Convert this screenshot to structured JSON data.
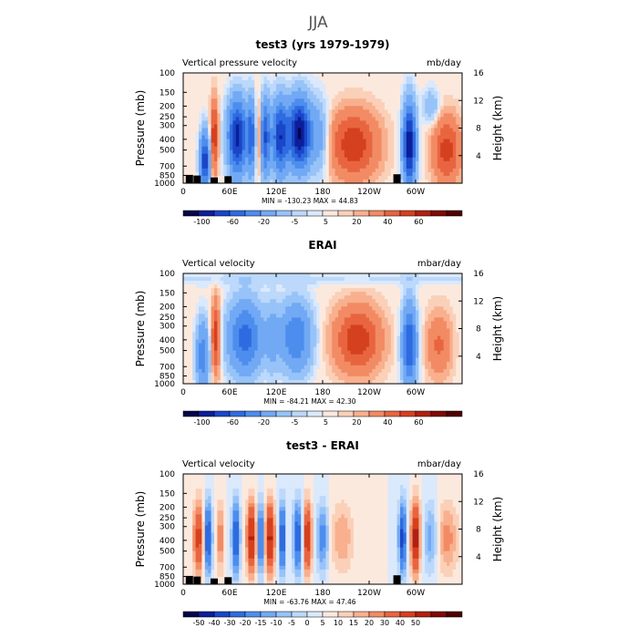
{
  "figure_title": "JJA",
  "colormap": [
    "#05054b",
    "#0c1e9a",
    "#1a46c8",
    "#2f6be0",
    "#4d8ded",
    "#72a9f4",
    "#97c3f8",
    "#bcd8fa",
    "#dbe9fc",
    "#fce9de",
    "#fbd0b8",
    "#f8b08e",
    "#f28b64",
    "#e86540",
    "#d5401f",
    "#b02010",
    "#800a05",
    "#500000"
  ],
  "chart_data": [
    {
      "type": "heatmap",
      "id": "test3",
      "title": "test3 (yrs 1979-1979)",
      "left_label": "Vertical pressure velocity",
      "right_label": "mb/day",
      "ylabel": "Pressure (mb)",
      "y2label": "Height (km)",
      "xticks": [
        "0",
        "60E",
        "120E",
        "180",
        "120W",
        "60W"
      ],
      "xtick_values": [
        0,
        60,
        120,
        180,
        240,
        300
      ],
      "xlim": [
        0,
        360
      ],
      "yticks": [
        "100",
        "150",
        "200",
        "250",
        "300",
        "400",
        "500",
        "700",
        "850",
        "1000"
      ],
      "ytick_values": [
        100,
        150,
        200,
        250,
        300,
        400,
        500,
        700,
        850,
        1000
      ],
      "ylim": [
        1000,
        100
      ],
      "y2ticks": [
        "16",
        "12",
        "8",
        "4"
      ],
      "y2tick_values": [
        16,
        12,
        8,
        4
      ],
      "stats": "MIN = -130.23   MAX =  44.83",
      "min": -130.23,
      "max": 44.83,
      "colorbar_labels": [
        "-100",
        "-60",
        "-20",
        "-5",
        "5",
        "20",
        "40",
        "60"
      ],
      "colorbar_levels": [
        -120,
        -100,
        -80,
        -60,
        -40,
        -20,
        -10,
        -5,
        -2,
        2,
        5,
        10,
        20,
        30,
        40,
        50,
        60
      ],
      "topography": [
        [
          8,
          26
        ],
        [
          18,
          24
        ],
        [
          40,
          18
        ],
        [
          58,
          22
        ],
        [
          112,
          10
        ],
        [
          134,
          8
        ],
        [
          160,
          2
        ],
        [
          200,
          2
        ],
        [
          240,
          2
        ],
        [
          276,
          28
        ],
        [
          293,
          8
        ],
        [
          336,
          3
        ]
      ]
    },
    {
      "type": "heatmap",
      "id": "erai",
      "title": "ERAI",
      "left_label": "Vertical velocity",
      "right_label": "mbar/day",
      "ylabel": "Pressure (mb)",
      "y2label": "Height (km)",
      "xticks": [
        "0",
        "60E",
        "120E",
        "180",
        "120W",
        "60W"
      ],
      "xtick_values": [
        0,
        60,
        120,
        180,
        240,
        300
      ],
      "xlim": [
        0,
        360
      ],
      "yticks": [
        "100",
        "150",
        "200",
        "250",
        "300",
        "400",
        "500",
        "700",
        "850",
        "1000"
      ],
      "ytick_values": [
        100,
        150,
        200,
        250,
        300,
        400,
        500,
        700,
        850,
        1000
      ],
      "ylim": [
        1000,
        100
      ],
      "y2ticks": [
        "16",
        "12",
        "8",
        "4"
      ],
      "y2tick_values": [
        16,
        12,
        8,
        4
      ],
      "stats": "MIN = -84.21   MAX =  42.30",
      "min": -84.21,
      "max": 42.3,
      "colorbar_labels": [
        "-100",
        "-60",
        "-20",
        "-5",
        "5",
        "20",
        "40",
        "60"
      ],
      "colorbar_levels": [
        -120,
        -100,
        -80,
        -60,
        -40,
        -20,
        -10,
        -5,
        -2,
        2,
        5,
        10,
        20,
        30,
        40,
        50,
        60
      ],
      "topography": [
        [
          8,
          26
        ],
        [
          18,
          24
        ],
        [
          40,
          18
        ],
        [
          58,
          22
        ],
        [
          112,
          10
        ],
        [
          134,
          8
        ],
        [
          160,
          2
        ],
        [
          200,
          2
        ],
        [
          240,
          2
        ],
        [
          276,
          28
        ],
        [
          293,
          8
        ],
        [
          336,
          3
        ]
      ]
    },
    {
      "type": "heatmap",
      "id": "diff",
      "title": "test3 - ERAI",
      "left_label": "Vertical velocity",
      "right_label": "mbar/day",
      "ylabel": "Pressure (mb)",
      "y2label": "Height (km)",
      "xticks": [
        "0",
        "60E",
        "120E",
        "180",
        "120W",
        "60W"
      ],
      "xtick_values": [
        0,
        60,
        120,
        180,
        240,
        300
      ],
      "xlim": [
        0,
        360
      ],
      "yticks": [
        "100",
        "150",
        "200",
        "250",
        "300",
        "400",
        "500",
        "700",
        "850",
        "1000"
      ],
      "ytick_values": [
        100,
        150,
        200,
        250,
        300,
        400,
        500,
        700,
        850,
        1000
      ],
      "ylim": [
        1000,
        100
      ],
      "y2ticks": [
        "16",
        "12",
        "8",
        "4"
      ],
      "y2tick_values": [
        16,
        12,
        8,
        4
      ],
      "stats": "MIN = -63.76   MAX =  47.46",
      "min": -63.76,
      "max": 47.46,
      "colorbar_labels": [
        "-50",
        "-40",
        "-30",
        "-20",
        "-15",
        "-10",
        "-5",
        "0",
        "5",
        "10",
        "15",
        "20",
        "30",
        "40",
        "50"
      ],
      "colorbar_levels": [
        -55,
        -50,
        -40,
        -30,
        -20,
        -15,
        -10,
        -5,
        0,
        5,
        10,
        15,
        20,
        30,
        40,
        50,
        55
      ],
      "topography": [
        [
          8,
          26
        ],
        [
          18,
          24
        ],
        [
          40,
          18
        ],
        [
          58,
          22
        ],
        [
          112,
          10
        ],
        [
          134,
          8
        ],
        [
          160,
          2
        ],
        [
          200,
          2
        ],
        [
          240,
          2
        ],
        [
          276,
          28
        ],
        [
          293,
          8
        ],
        [
          336,
          3
        ]
      ]
    }
  ]
}
